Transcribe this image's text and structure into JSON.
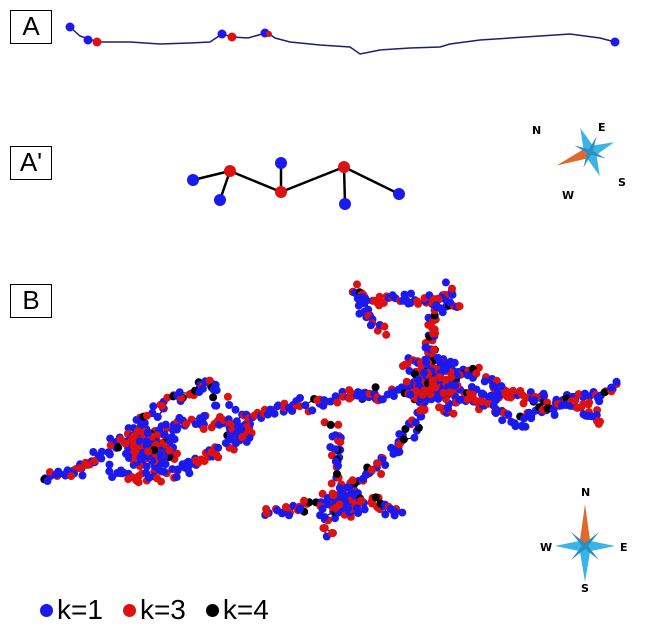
{
  "panels": {
    "a": {
      "label": "A"
    },
    "a_prime": {
      "label": "A'"
    },
    "b": {
      "label": "B"
    }
  },
  "compass_top": {
    "n": "N",
    "e": "E",
    "s": "S",
    "w": "W"
  },
  "compass_bottom": {
    "n": "N",
    "e": "E",
    "s": "S",
    "w": "W"
  },
  "legend": [
    {
      "label": "k=1",
      "color": "#1a1aee"
    },
    {
      "label": "k=3",
      "color": "#dd1111"
    },
    {
      "label": "k=4",
      "color": "#000000"
    }
  ],
  "colors": {
    "k1": "#1a1aee",
    "k3": "#dd1111",
    "k4": "#000000",
    "trace": "#1e1e6e",
    "compass_blue": "#3ab4e8",
    "compass_orange": "#e06a2c"
  }
}
